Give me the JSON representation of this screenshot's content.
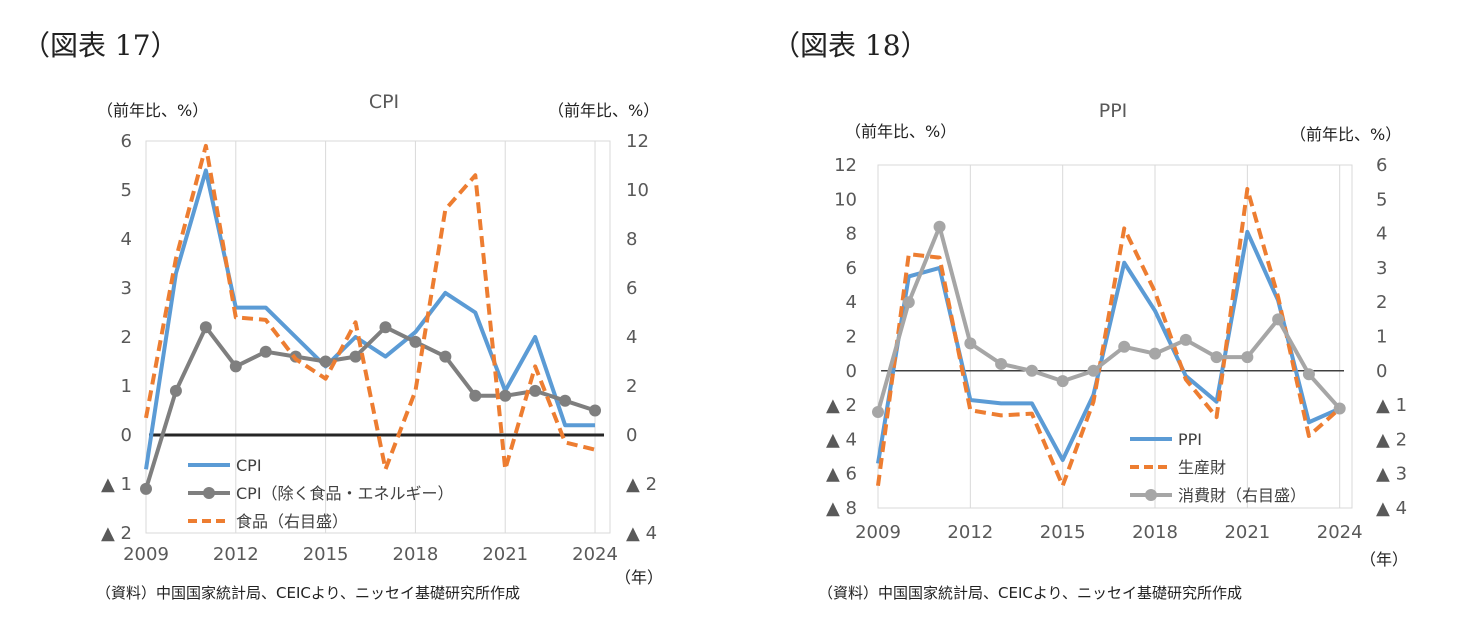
{
  "figures": [
    {
      "label": "（図表 17）",
      "source_note": "（資料）中国国家統計局、CEICより、ニッセイ基礎研究所作成"
    },
    {
      "label": "（図表 18）",
      "source_note": "（資料）中国国家統計局、CEICより、ニッセイ基礎研究所作成"
    }
  ],
  "chart_data": [
    {
      "type": "line",
      "title": "CPI",
      "left_unit": "（前年比、%）",
      "right_unit": "（前年比、%）",
      "x_unit": "（年）",
      "x": [
        2009,
        2010,
        2011,
        2012,
        2013,
        2014,
        2015,
        2016,
        2017,
        2018,
        2019,
        2020,
        2021,
        2022,
        2023,
        2024
      ],
      "x_ticks": [
        "2009",
        "2012",
        "2015",
        "2018",
        "2021",
        "2024"
      ],
      "x_tick_values": [
        2009,
        2012,
        2015,
        2018,
        2021,
        2024
      ],
      "xlim": [
        2009,
        2024.5
      ],
      "left_ylim": [
        -2,
        6
      ],
      "right_ylim": [
        -4,
        12
      ],
      "left_ticks": [
        {
          "v": 6,
          "t": "6"
        },
        {
          "v": 5,
          "t": "5"
        },
        {
          "v": 4,
          "t": "4"
        },
        {
          "v": 3,
          "t": "3"
        },
        {
          "v": 2,
          "t": "2"
        },
        {
          "v": 1,
          "t": "1"
        },
        {
          "v": 0,
          "t": "0"
        },
        {
          "v": -1,
          "t": "▲ 1"
        },
        {
          "v": -2,
          "t": "▲ 2"
        }
      ],
      "right_ticks": [
        {
          "v": 12,
          "t": "12"
        },
        {
          "v": 10,
          "t": "10"
        },
        {
          "v": 8,
          "t": "8"
        },
        {
          "v": 6,
          "t": "6"
        },
        {
          "v": 4,
          "t": "4"
        },
        {
          "v": 2,
          "t": "2"
        },
        {
          "v": 0,
          "t": "0"
        },
        {
          "v": -2,
          "t": "▲ 2"
        },
        {
          "v": -4,
          "t": "▲ 4"
        }
      ],
      "zero_line": true,
      "legend_position": "bottom-left",
      "series": [
        {
          "name": "CPI",
          "axis": "left",
          "color": "#5b9bd5",
          "style": "solid",
          "marker": false,
          "values": [
            -0.7,
            3.3,
            5.4,
            2.6,
            2.6,
            2.0,
            1.4,
            2.0,
            1.6,
            2.1,
            2.9,
            2.5,
            0.9,
            2.0,
            0.2,
            0.2
          ]
        },
        {
          "name": "CPI（除く食品・エネルギー）",
          "axis": "left",
          "color": "#7f7f7f",
          "style": "solid",
          "marker": true,
          "values": [
            -1.1,
            0.9,
            2.2,
            1.4,
            1.7,
            1.6,
            1.5,
            1.6,
            2.2,
            1.9,
            1.6,
            0.8,
            0.8,
            0.9,
            0.7,
            0.5
          ]
        },
        {
          "name": "食品（右目盛）",
          "axis": "right",
          "color": "#ed7d31",
          "style": "dashed",
          "marker": false,
          "values": [
            0.7,
            7.2,
            11.8,
            4.8,
            4.7,
            3.1,
            2.3,
            4.6,
            -1.4,
            1.8,
            9.2,
            10.6,
            -1.4,
            2.8,
            -0.3,
            -0.6
          ]
        }
      ]
    },
    {
      "type": "line",
      "title": "PPI",
      "left_unit": "（前年比、%）",
      "right_unit": "（前年比、%）",
      "x_unit": "（年）",
      "x": [
        2009,
        2010,
        2011,
        2012,
        2013,
        2014,
        2015,
        2016,
        2017,
        2018,
        2019,
        2020,
        2021,
        2022,
        2023,
        2024
      ],
      "x_ticks": [
        "2009",
        "2012",
        "2015",
        "2018",
        "2021",
        "2024"
      ],
      "x_tick_values": [
        2009,
        2012,
        2015,
        2018,
        2021,
        2024
      ],
      "xlim": [
        2009,
        2024.4
      ],
      "left_ylim": [
        -8,
        12
      ],
      "right_ylim": [
        -4,
        6
      ],
      "left_ticks": [
        {
          "v": 12,
          "t": "12"
        },
        {
          "v": 10,
          "t": "10"
        },
        {
          "v": 8,
          "t": "8"
        },
        {
          "v": 6,
          "t": "6"
        },
        {
          "v": 4,
          "t": "4"
        },
        {
          "v": 2,
          "t": "2"
        },
        {
          "v": 0,
          "t": "0"
        },
        {
          "v": -2,
          "t": "▲ 2"
        },
        {
          "v": -4,
          "t": "▲ 4"
        },
        {
          "v": -6,
          "t": "▲ 6"
        },
        {
          "v": -8,
          "t": "▲ 8"
        }
      ],
      "right_ticks": [
        {
          "v": 6,
          "t": "6"
        },
        {
          "v": 5,
          "t": "5"
        },
        {
          "v": 4,
          "t": "4"
        },
        {
          "v": 3,
          "t": "3"
        },
        {
          "v": 2,
          "t": "2"
        },
        {
          "v": 1,
          "t": "1"
        },
        {
          "v": 0,
          "t": "0"
        },
        {
          "v": -1,
          "t": "▲ 1"
        },
        {
          "v": -2,
          "t": "▲ 2"
        },
        {
          "v": -3,
          "t": "▲ 3"
        },
        {
          "v": -4,
          "t": "▲ 4"
        }
      ],
      "zero_line": true,
      "legend_position": "bottom-right",
      "series": [
        {
          "name": "PPI",
          "axis": "left",
          "color": "#5b9bd5",
          "style": "solid",
          "marker": false,
          "values": [
            -5.4,
            5.5,
            6.0,
            -1.7,
            -1.9,
            -1.9,
            -5.2,
            -1.4,
            6.3,
            3.5,
            -0.3,
            -1.8,
            8.1,
            4.1,
            -3.0,
            -2.2
          ]
        },
        {
          "name": "生産財",
          "axis": "left",
          "color": "#ed7d31",
          "style": "dashed",
          "marker": false,
          "values": [
            -6.7,
            6.8,
            6.6,
            -2.3,
            -2.6,
            -2.5,
            -6.7,
            -1.8,
            8.3,
            4.6,
            -0.5,
            -2.7,
            10.6,
            4.3,
            -3.8,
            -2.2
          ]
        },
        {
          "name": "消費財（右目盛）",
          "axis": "right",
          "color": "#a6a6a6",
          "style": "solid",
          "marker": true,
          "values": [
            -1.2,
            2.0,
            4.2,
            0.8,
            0.2,
            0.0,
            -0.3,
            0.0,
            0.7,
            0.5,
            0.9,
            0.4,
            0.4,
            1.5,
            -0.1,
            -1.1
          ]
        }
      ]
    }
  ]
}
